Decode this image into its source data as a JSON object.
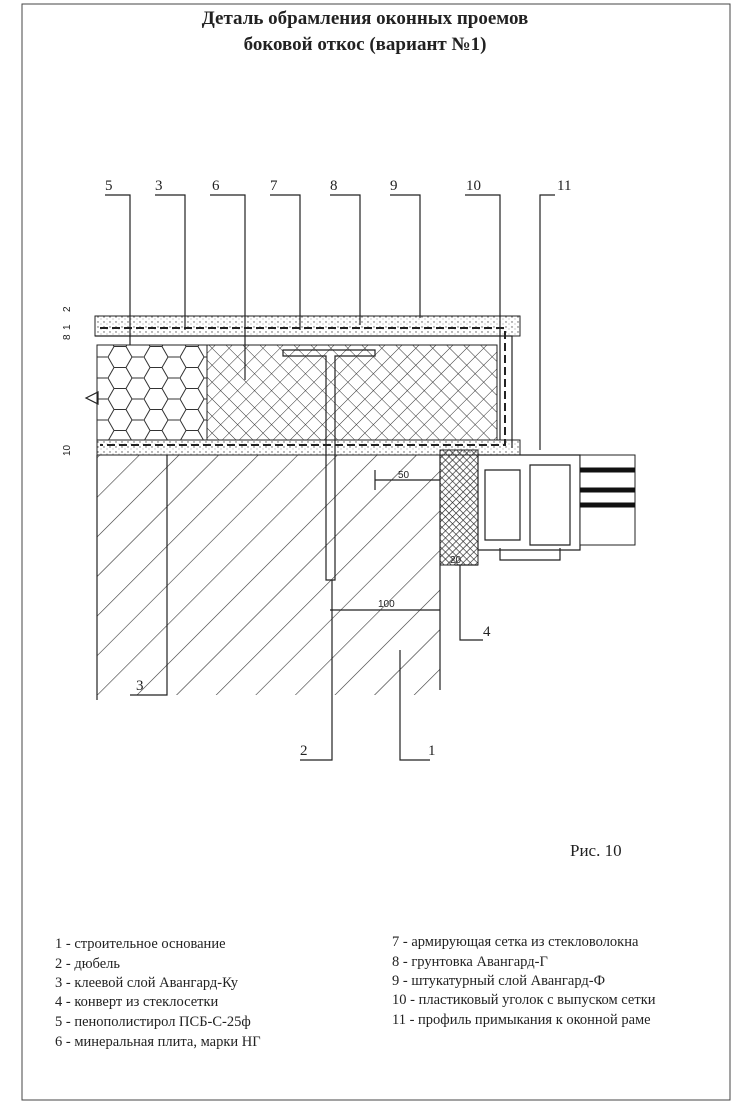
{
  "title": {
    "line1": "Деталь обрамления оконных проемов",
    "line2": "боковой откос (вариант №1)"
  },
  "callouts_top": [
    "5",
    "3",
    "6",
    "7",
    "8",
    "9",
    "10",
    "11"
  ],
  "callouts_bottom": [
    "3",
    "4",
    "2",
    "1"
  ],
  "dimensions": {
    "top_layer": 2,
    "mid_layer": "8",
    "thin_layer": "1",
    "bottom_layer": 10,
    "overlap": 50,
    "envelope": 20,
    "dowel_depth": 100
  },
  "figure_label": "Рис. 10",
  "legend": {
    "left": [
      "1 - строительное основание",
      "2 - дюбель",
      "3 - клеевой слой Авангард-Ку",
      "4 - конверт из стеклосетки",
      "5 - пенополистирол ПСБ-С-25ф",
      "6 - минеральная плита, марки НГ"
    ],
    "right": [
      "7 - армирующая сетка из стекловолокна",
      "8 - грунтовка Авангард-Г",
      "9 - штукатурный слой Авангард-Ф",
      "10 - пластиковый уголок с выпуском сетки",
      "11 - профиль примыкания к оконной раме"
    ]
  }
}
